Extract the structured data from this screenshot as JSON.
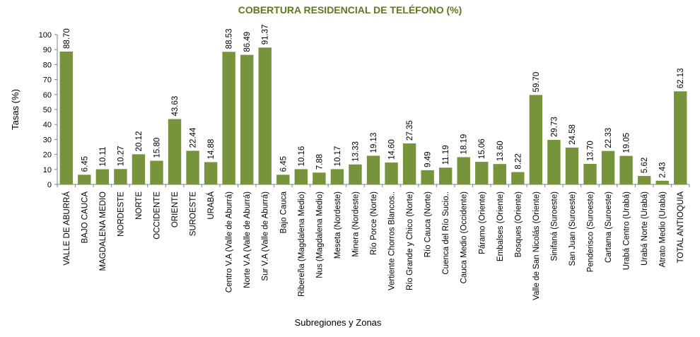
{
  "chart_data": {
    "type": "bar",
    "title": "COBERTURA RESIDENCIAL DE TELÉFONO (%)",
    "xlabel": "Subregiones y Zonas",
    "ylabel": "Tasas (%)",
    "ylim": [
      0,
      100
    ],
    "yticks": [
      0,
      10,
      20,
      30,
      40,
      50,
      60,
      70,
      80,
      90,
      100
    ],
    "grid": false,
    "bar_color": "#77933c",
    "categories": [
      "VALLE DE ABURRÁ",
      "BAJO CAUCA",
      "MAGDALENA MEDIO",
      "NORDESTE",
      "NORTE",
      "OCCIDENTE",
      "ORIENTE",
      "SUROESTE",
      "URABÁ",
      "Centro V.A (Valle de Aburrá)",
      "Norte V.A (Valle de Aburrá)",
      "Sur V.A (Valle de Aburrá)",
      "Bajo Cauca",
      "Ribereña  (Magdalena Medio)",
      "Nus  (Magdalena Medio)",
      "Meseta  (Nordeste)",
      "Minera  (Nordeste)",
      "Río Porce   (Norte)",
      "Vertiente Chorros Blancos..",
      "Río Grande y Chico  (Norte)",
      "Río Cauca  (Norte)",
      "Cuenca del Río Sucio..",
      "Cauca Medio  (Occidente)",
      "Páramo   (Oriente)",
      "Embalses  (Oriente)",
      "Bosques  (Oriente)",
      "Valle de San Nicolás (Oriente)",
      "Sinifaná  (Suroeste)",
      "San Juan  (Suroeste)",
      "Penderisco  (Suroeste)",
      "Cartama  (Suroeste)",
      "Urabá Centro  (Urabá)",
      "Urabá Norte  (Urabá)",
      "Atrato Medio  (Urabá)",
      "TOTAL ANTIOQUIA"
    ],
    "values": [
      88.7,
      6.45,
      10.11,
      10.27,
      20.12,
      15.8,
      43.63,
      22.44,
      14.88,
      88.53,
      86.49,
      91.37,
      6.45,
      10.16,
      7.88,
      10.17,
      13.33,
      19.13,
      14.6,
      27.35,
      9.49,
      11.19,
      18.19,
      15.06,
      13.6,
      8.22,
      59.7,
      29.73,
      24.58,
      13.7,
      22.33,
      19.05,
      5.62,
      2.43,
      62.13
    ],
    "value_labels": [
      "88.70",
      "6.45",
      "10.11",
      "10.27",
      "20.12",
      "15.80",
      "43.63",
      "22.44",
      "14.88",
      "88.53",
      "86.49",
      "91.37",
      "6.45",
      "10.16",
      "7.88",
      "10.17",
      "13.33",
      "19.13",
      "14.60",
      "27.35",
      "9.49",
      "11.19",
      "18.19",
      "15.06",
      "13.60",
      "8.22",
      "59.70",
      "29.73",
      "24.58",
      "13.70",
      "22.33",
      "19.05",
      "5.62",
      "2.43",
      "62.13"
    ]
  }
}
